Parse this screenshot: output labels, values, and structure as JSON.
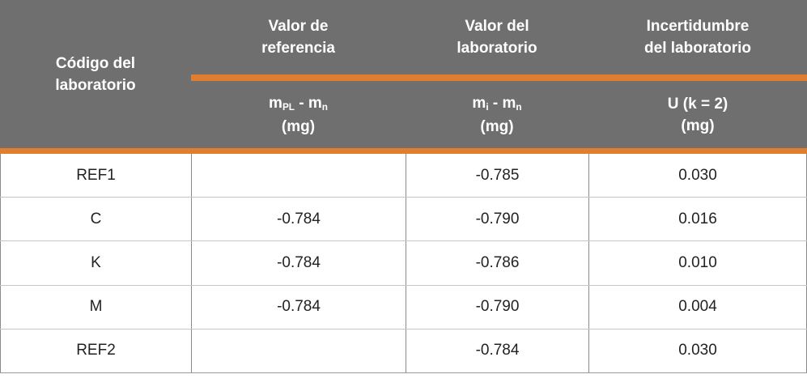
{
  "table": {
    "header": {
      "col_code": {
        "title": "Código del laboratorio"
      },
      "col_reference": {
        "title": "Valor de referencia",
        "formula": {
          "base1": "m",
          "sub1": "PL",
          "sep": " - ",
          "base2": "m",
          "sub2": "n"
        },
        "unit": "(mg)"
      },
      "col_lab": {
        "title": "Valor del laboratorio",
        "formula": {
          "base1": "m",
          "sub1": "i",
          "sep": " - ",
          "base2": "m",
          "sub2": "n"
        },
        "unit": "(mg)"
      },
      "col_uncertainty": {
        "title": "Incertidumbre del laboratorio",
        "formula_text": "U (k = 2)",
        "unit": "(mg)"
      }
    },
    "rows": [
      {
        "code": "REF1",
        "reference": "",
        "lab": "-0.785",
        "uncertainty": "0.030"
      },
      {
        "code": "C",
        "reference": "-0.784",
        "lab": "-0.790",
        "uncertainty": "0.016"
      },
      {
        "code": "K",
        "reference": "-0.784",
        "lab": "-0.786",
        "uncertainty": "0.010"
      },
      {
        "code": "M",
        "reference": "-0.784",
        "lab": "-0.790",
        "uncertainty": "0.004"
      },
      {
        "code": "REF2",
        "reference": "",
        "lab": "-0.784",
        "uncertainty": "0.030"
      }
    ],
    "colors": {
      "header_background": "#6f6f6f",
      "header_text": "#ffffff",
      "accent_orange": "#df7e2f",
      "row_divider": "#c5c5c5",
      "column_divider": "#8a8a8a",
      "body_text": "#222222"
    }
  }
}
